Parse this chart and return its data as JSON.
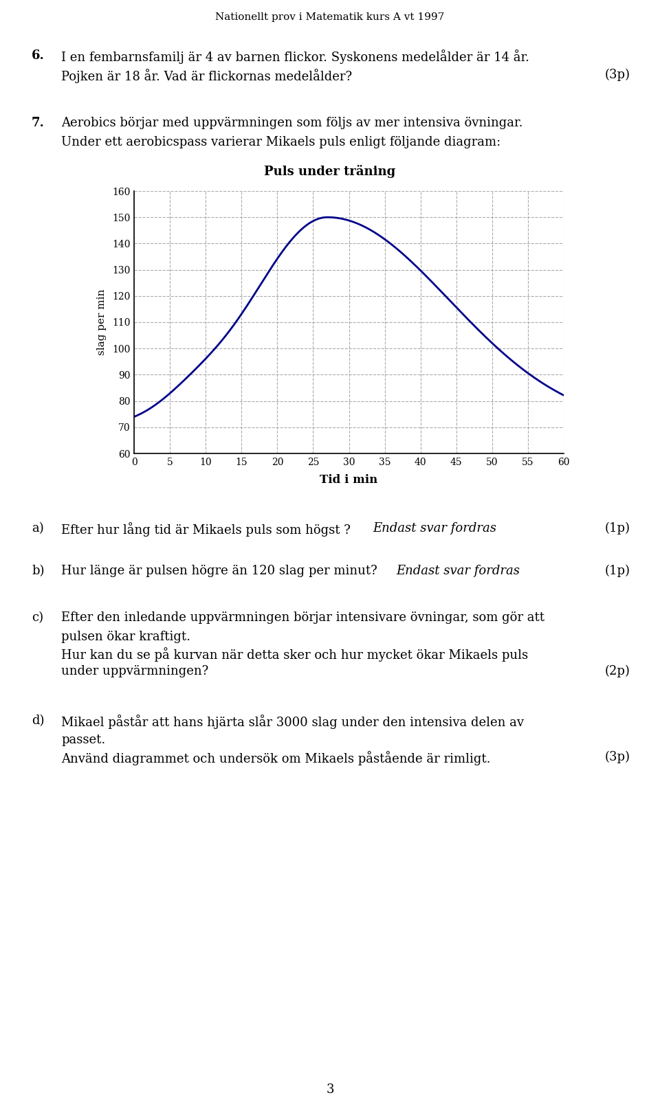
{
  "title": "Puls under träning",
  "ylabel": "slag per min",
  "xlabel": "Tid i min",
  "header": "Nationellt prov i Matematik kurs A vt 1997",
  "page_number": "3",
  "ylim": [
    60,
    160
  ],
  "xlim": [
    0,
    60
  ],
  "yticks": [
    60,
    70,
    80,
    90,
    100,
    110,
    120,
    130,
    140,
    150,
    160
  ],
  "xticks": [
    0,
    5,
    10,
    15,
    20,
    25,
    30,
    35,
    40,
    45,
    50,
    55,
    60
  ],
  "line_color": "#00008B",
  "grid_color": "#AAAAAA",
  "background_color": "#FFFFFF",
  "serif_font": "DejaVu Serif",
  "body_fontsize": 13,
  "header_fontsize": 11,
  "chart_title_fontsize": 13
}
